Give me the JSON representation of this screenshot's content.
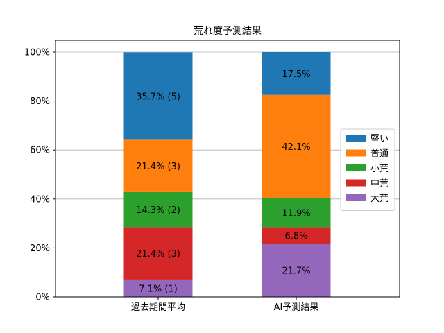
{
  "chart_data": {
    "type": "bar",
    "stacked": true,
    "title": "荒れ度予測結果",
    "xlabel": "",
    "ylabel": "",
    "categories": [
      "過去期間平均",
      "AI予測結果"
    ],
    "ylim": [
      0,
      100
    ],
    "y_ticks": [
      "0%",
      "20%",
      "40%",
      "60%",
      "80%",
      "100%"
    ],
    "grid": "horizontal",
    "legend_position": "center-right",
    "series": [
      {
        "name": "大荒",
        "color": "#9467bd",
        "values": [
          7.1,
          21.7
        ],
        "labels": [
          "7.1% (1)",
          "21.7%"
        ]
      },
      {
        "name": "中荒",
        "color": "#d62728",
        "values": [
          21.4,
          6.8
        ],
        "labels": [
          "21.4% (3)",
          "6.8%"
        ]
      },
      {
        "name": "小荒",
        "color": "#2ca02c",
        "values": [
          14.3,
          11.9
        ],
        "labels": [
          "14.3% (2)",
          "11.9%"
        ]
      },
      {
        "name": "普通",
        "color": "#ff7f0e",
        "values": [
          21.4,
          42.1
        ],
        "labels": [
          "21.4% (3)",
          "42.1%"
        ]
      },
      {
        "name": "堅い",
        "color": "#1f77b4",
        "values": [
          35.7,
          17.5
        ],
        "labels": [
          "35.7% (5)",
          "17.5%"
        ]
      }
    ],
    "legend_order": [
      "堅い",
      "普通",
      "小荒",
      "中荒",
      "大荒"
    ]
  }
}
